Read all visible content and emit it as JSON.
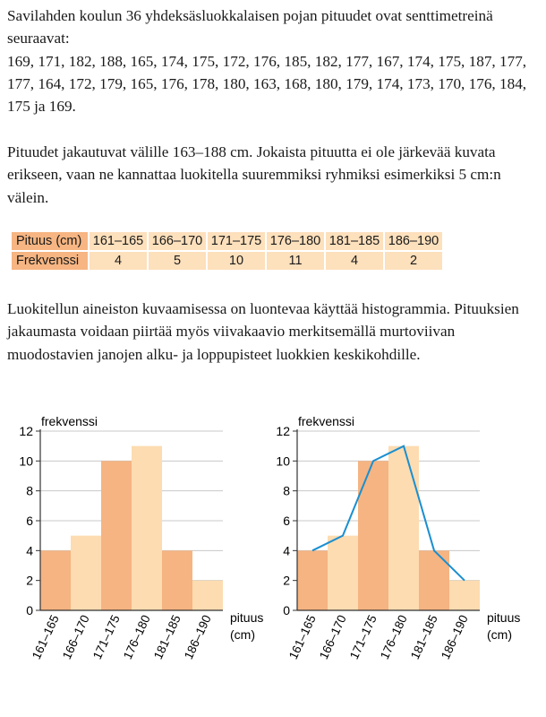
{
  "text": {
    "para1": "Savilahden koulun 36 yhdeksäsluokkalaisen pojan pituudet ovat senttimetreinä seuraavat:",
    "data_list": "169, 171, 182, 188, 165, 174, 175, 172, 176, 185, 182, 177, 167, 174, 175, 187, 177, 177, 164, 172, 179, 165, 176, 178, 180, 163, 168, 180, 179, 174, 173, 170, 176, 184, 175 ja 169.",
    "para2": "Pituudet jakautuvat välille 163–188 cm. Jokaista pituutta ei ole järkevää kuvata erikseen, vaan ne kannattaa luokitella suuremmiksi ryhmiksi esimerkiksi 5 cm:n välein.",
    "para3": "Luokitellun aineiston kuvaamisessa on luontevaa käyttää histogrammia. Pituuksien jakaumasta voidaan piirtää myös viivakaavio merkitsemällä murtoviivan muodostavien janojen alku- ja loppupisteet luokkien keskikohdille."
  },
  "table": {
    "row1_header": "Pituus (cm)",
    "row2_header": "Frekvenssi",
    "classes": [
      "161–165",
      "166–170",
      "171–175",
      "176–180",
      "181–185",
      "186–190"
    ],
    "frequencies": [
      "4",
      "5",
      "10",
      "11",
      "4",
      "2"
    ]
  },
  "colors": {
    "bar_dark": "#f5b482",
    "bar_light": "#fddcb1",
    "line": "#1a8fd0",
    "grid": "#c8c8c8"
  },
  "chart_data": [
    {
      "type": "bar",
      "categories": [
        "161–165",
        "166–170",
        "171–175",
        "176–180",
        "181–185",
        "186–190"
      ],
      "values": [
        4,
        5,
        10,
        11,
        4,
        2
      ],
      "ylabel": "frekvenssi",
      "xlabel": "pituus (cm)",
      "xlabel_line1": "pituus",
      "xlabel_line2": "(cm)",
      "ylim": [
        0,
        12
      ],
      "yticks": [
        "0",
        "2",
        "4",
        "6",
        "8",
        "10",
        "12"
      ],
      "grid": true
    },
    {
      "type": "bar+line",
      "categories": [
        "161–165",
        "166–170",
        "171–175",
        "176–180",
        "181–185",
        "186–190"
      ],
      "values": [
        4,
        5,
        10,
        11,
        4,
        2
      ],
      "line_values": [
        4,
        5,
        10,
        11,
        4,
        2
      ],
      "ylabel": "frekvenssi",
      "xlabel": "pituus (cm)",
      "xlabel_line1": "pituus",
      "xlabel_line2": "(cm)",
      "ylim": [
        0,
        12
      ],
      "yticks": [
        "0",
        "2",
        "4",
        "6",
        "8",
        "10",
        "12"
      ],
      "grid": true
    }
  ]
}
